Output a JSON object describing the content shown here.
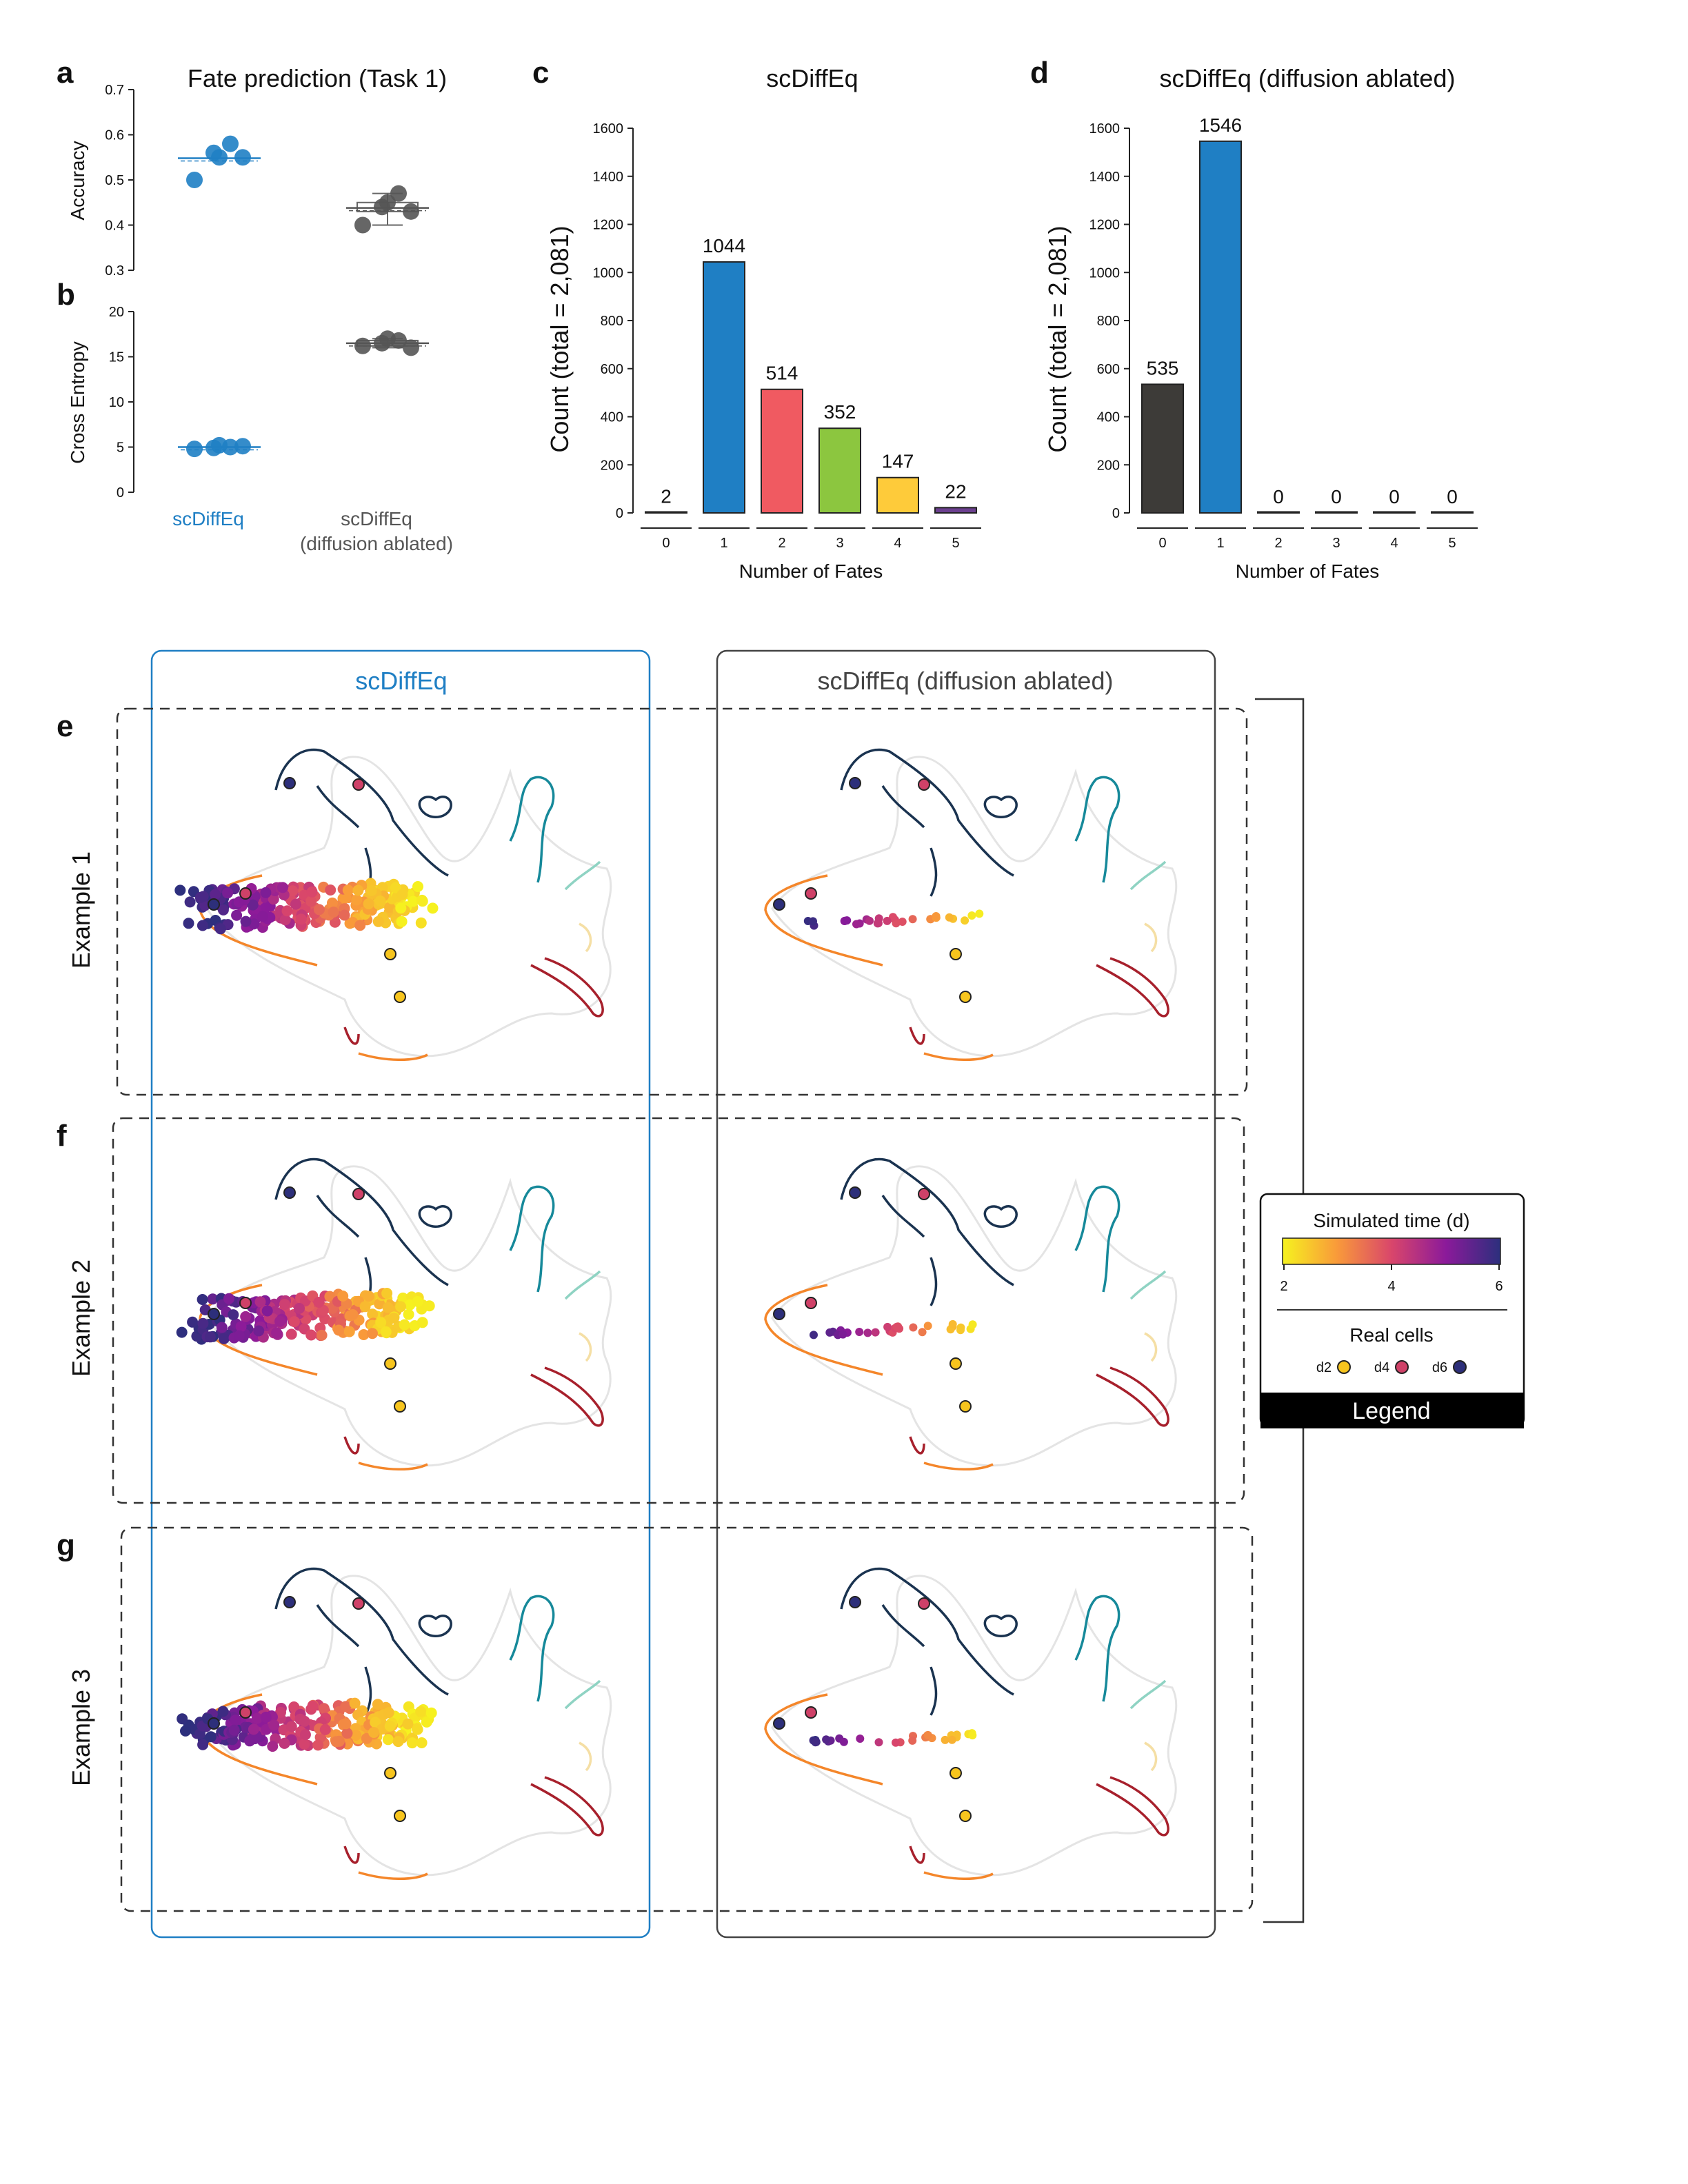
{
  "panel_labels": [
    "a",
    "b",
    "c",
    "d",
    "e",
    "f",
    "g"
  ],
  "colors": {
    "scdiffeq": "#1f7fc4",
    "ablated": "#555555",
    "fate_0": "#3d3b38",
    "fate_1": "#1f7fc4",
    "fate_2": "#f05a61",
    "fate_3": "#8cc63f",
    "fate_4": "#fecb3a",
    "fate_5": "#6b3f8f",
    "umap_outline": "#e4e4e4",
    "umap_navy": "#1a3350",
    "umap_teal": "#16899a",
    "umap_mint": "#8fd3c3",
    "umap_orange": "#f4862a",
    "umap_red": "#a7202c",
    "umap_cream": "#f5dfa5"
  },
  "chart_data": [
    {
      "id": "a",
      "type": "scatter",
      "title": "Fate prediction (Task 1)",
      "ylabel": "Accuracy",
      "ylim": [
        0.3,
        0.7
      ],
      "yticks": [
        "0.3",
        "0.4",
        "0.5",
        "0.6",
        "0.7"
      ],
      "categories": [
        "scDiffEq",
        "scDiffEq (diffusion ablated)"
      ],
      "series": [
        {
          "values": [
            0.5,
            0.55,
            0.58,
            0.55,
            0.56
          ]
        },
        {
          "values": [
            0.4,
            0.45,
            0.47,
            0.43,
            0.44
          ]
        }
      ]
    },
    {
      "id": "b",
      "type": "scatter",
      "ylabel": "Cross Entropy",
      "ylim": [
        0,
        20
      ],
      "yticks": [
        "0",
        "5",
        "10",
        "15",
        "20"
      ],
      "categories": [
        "scDiffEq",
        "scDiffEq (diffusion ablated)"
      ],
      "category_labels": [
        [
          "scDiffEq"
        ],
        [
          "scDiffEq",
          "(diffusion ablated)"
        ]
      ],
      "series": [
        {
          "values": [
            4.8,
            5.2,
            5.0,
            5.1,
            4.9
          ]
        },
        {
          "values": [
            16.2,
            17.0,
            16.8,
            16.0,
            16.5
          ]
        }
      ]
    },
    {
      "id": "c",
      "type": "bar",
      "title": "scDiffEq",
      "xlabel": "Number of Fates",
      "ylabel": "Count (total = 2,081)",
      "ylim": [
        0,
        1600
      ],
      "yticks": [
        "0",
        "200",
        "400",
        "600",
        "800",
        "1000",
        "1200",
        "1400",
        "1600"
      ],
      "categories": [
        "0",
        "1",
        "2",
        "3",
        "4",
        "5"
      ],
      "values": [
        2,
        1044,
        514,
        352,
        147,
        22
      ],
      "labels": [
        "2",
        "1044",
        "514",
        "352",
        "147",
        "22"
      ]
    },
    {
      "id": "d",
      "type": "bar",
      "title": "scDiffEq (diffusion ablated)",
      "xlabel": "Number of Fates",
      "ylabel": "Count (total = 2,081)",
      "ylim": [
        0,
        1600
      ],
      "yticks": [
        "0",
        "200",
        "400",
        "600",
        "800",
        "1000",
        "1200",
        "1400",
        "1600"
      ],
      "categories": [
        "0",
        "1",
        "2",
        "3",
        "4",
        "5"
      ],
      "values": [
        535,
        1546,
        0,
        0,
        0,
        0
      ],
      "labels": [
        "535",
        "1546",
        "0",
        "0",
        "0",
        "0"
      ]
    }
  ],
  "umap_panels": {
    "column_titles": [
      "scDiffEq",
      "scDiffEq (diffusion ablated)"
    ],
    "row_labels": [
      "Example 1",
      "Example 2",
      "Example 3"
    ]
  },
  "legend": {
    "colorbar_title": "Simulated time (d)",
    "ticks": [
      "2",
      "4",
      "6"
    ],
    "real_cells_title": "Real cells",
    "real_cells": [
      {
        "label": "d2",
        "color": "#f7c51e"
      },
      {
        "label": "d4",
        "color": "#cf4168"
      },
      {
        "label": "d6",
        "color": "#2d2f7a"
      }
    ],
    "footer": "Legend"
  }
}
